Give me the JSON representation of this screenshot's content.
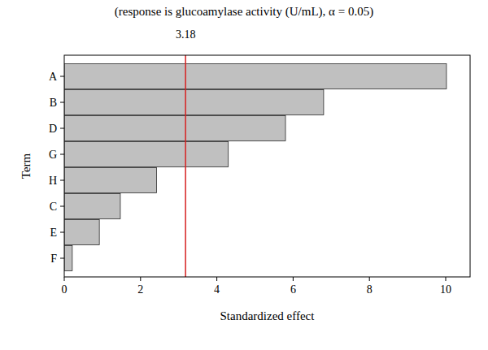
{
  "chart_data": {
    "type": "bar",
    "orientation": "horizontal",
    "title": "(response is glucoamylase activity (U/mL), α = 0.05)",
    "x_label": "Standardized effect",
    "y_label": "Term",
    "categories": [
      "A",
      "B",
      "D",
      "G",
      "H",
      "C",
      "E",
      "F"
    ],
    "values": [
      10.02,
      6.8,
      5.8,
      4.3,
      2.42,
      1.47,
      0.92,
      0.21
    ],
    "color": "#c0c0c0",
    "reference_line": 3.18,
    "reference_color": "#d62020",
    "xlim": [
      0,
      10.64
    ],
    "xticks": [
      0,
      2,
      4,
      6,
      8,
      10
    ],
    "grid": false
  }
}
